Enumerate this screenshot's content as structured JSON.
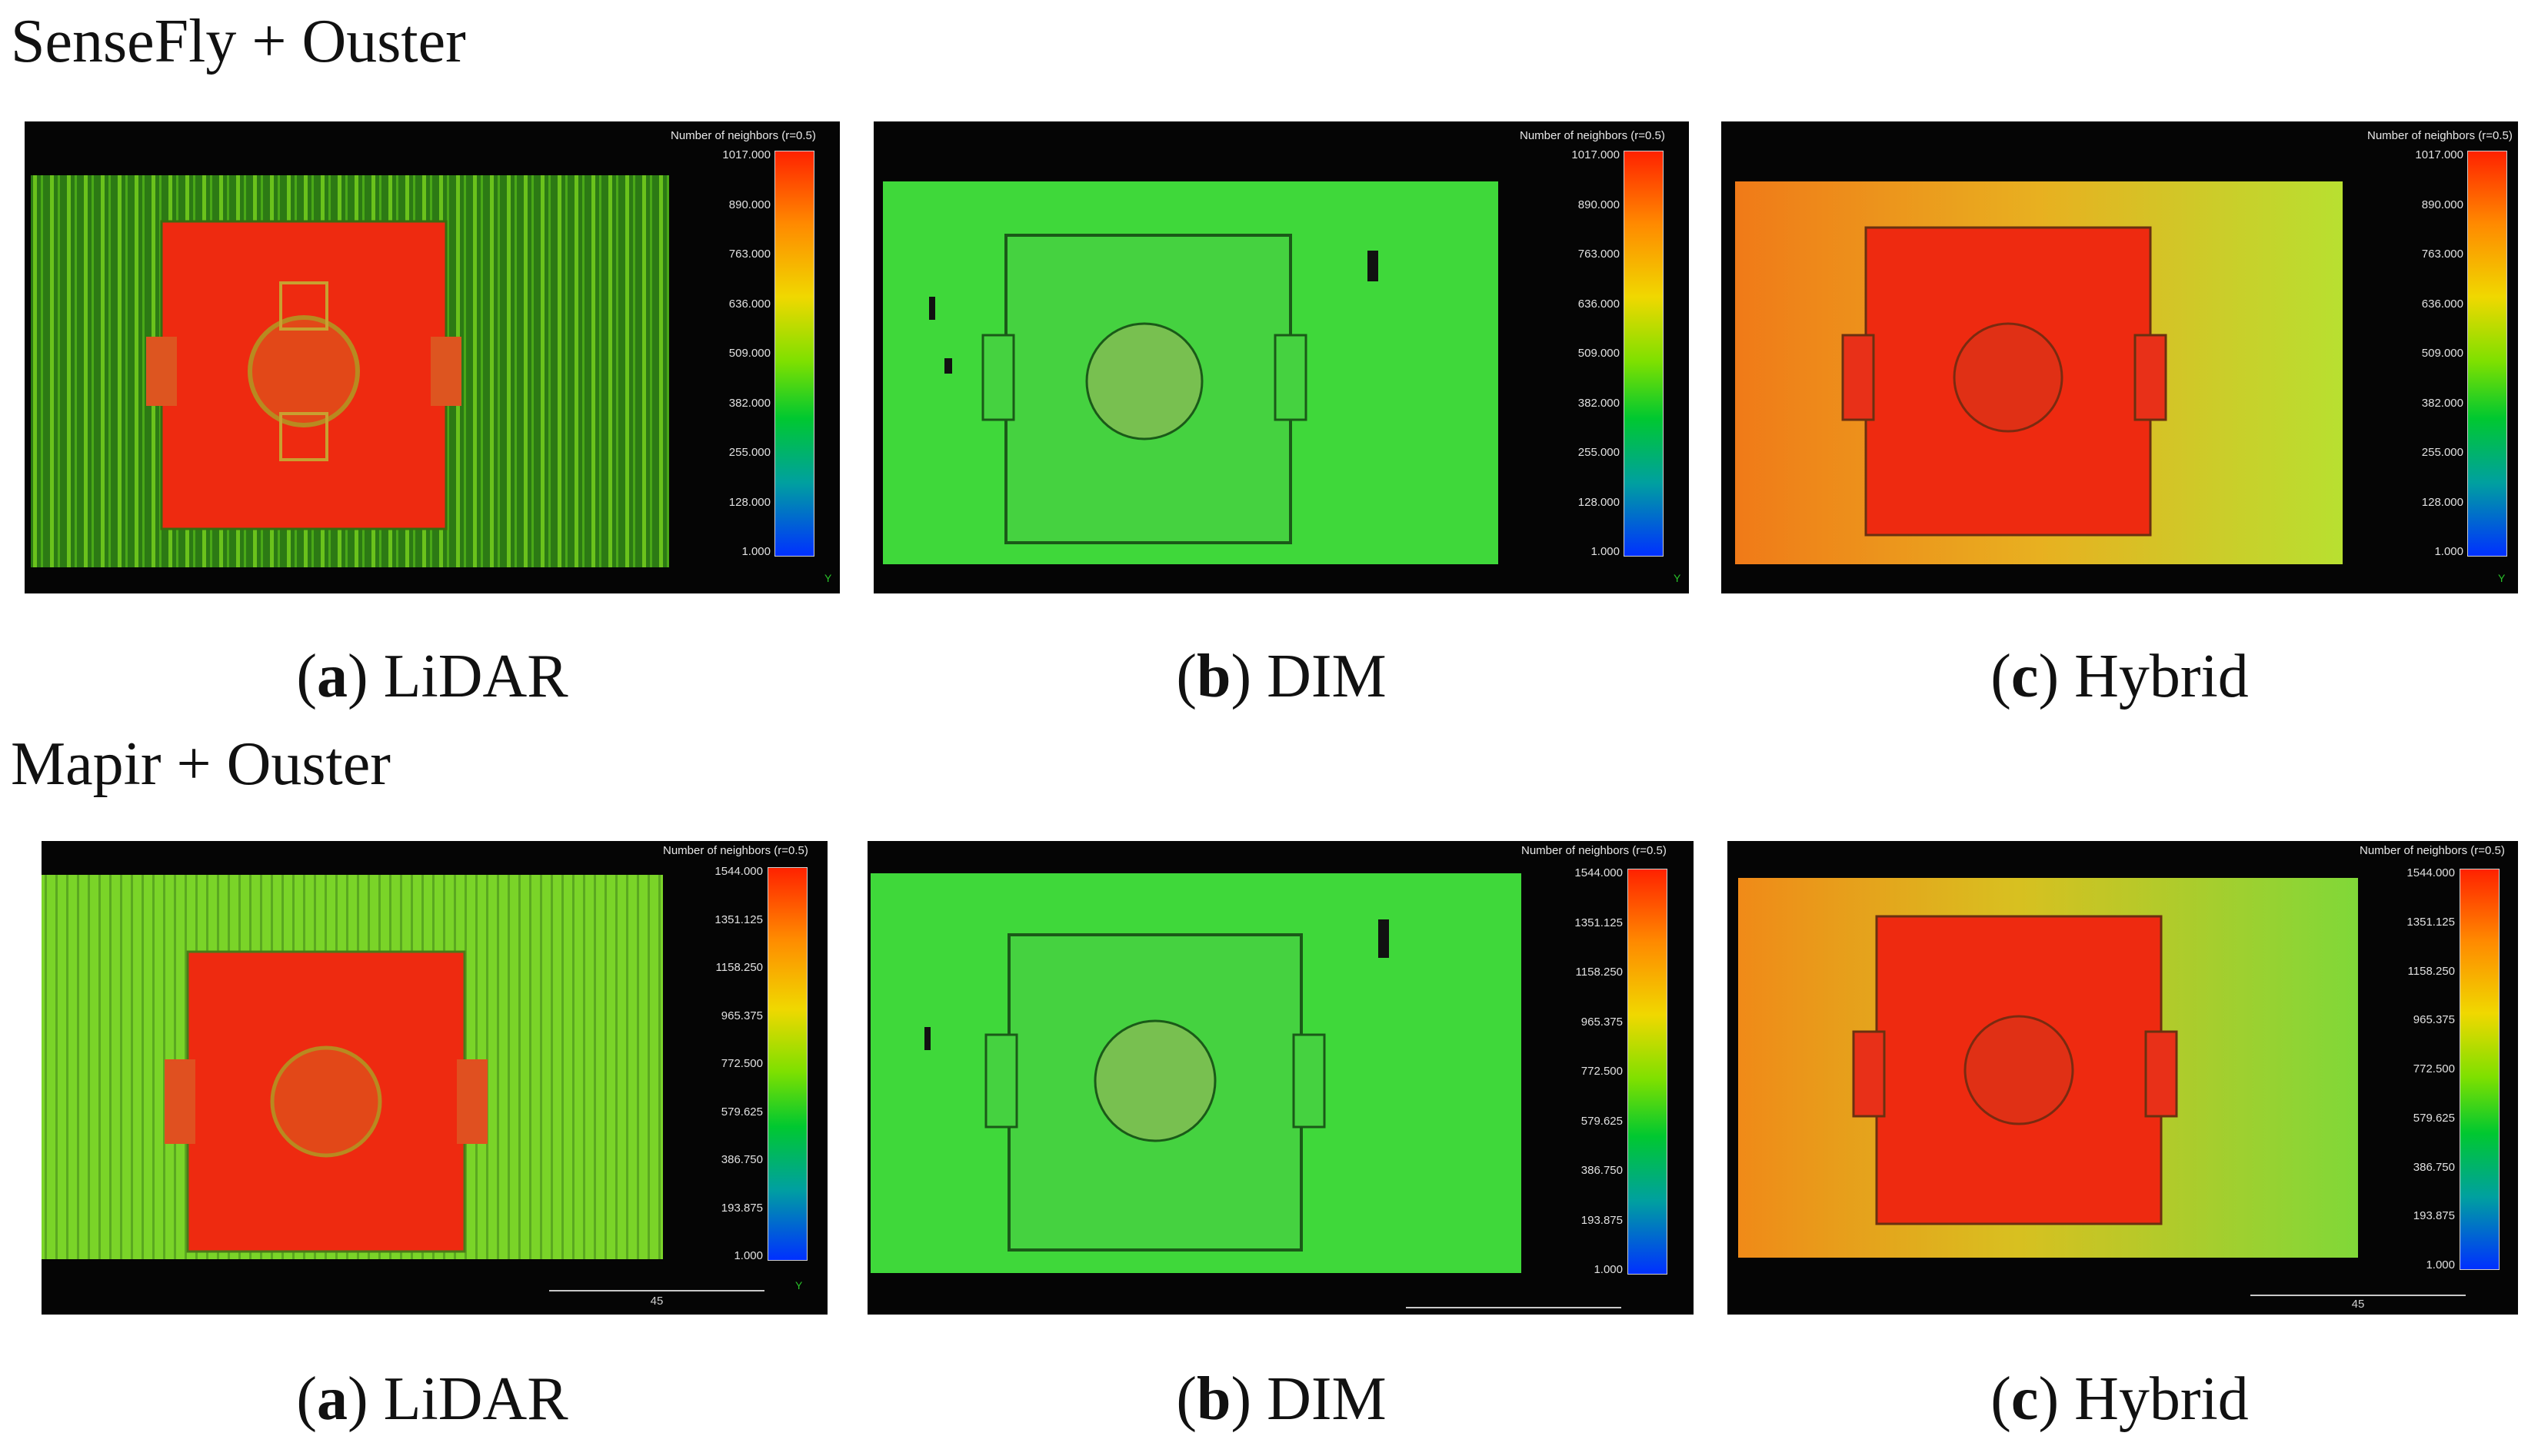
{
  "groups": [
    {
      "title": "SenseFly + Ouster",
      "colorbar_title": "Number of neighbors (r=0.5)",
      "ticks": [
        "1017.000",
        "890.000",
        "763.000",
        "636.000",
        "509.000",
        "382.000",
        "255.000",
        "128.000",
        "1.000"
      ],
      "scale_label": "",
      "panels": [
        {
          "letter": "a",
          "label": "LiDAR",
          "style": "lidar"
        },
        {
          "letter": "b",
          "label": "DIM",
          "style": "dim"
        },
        {
          "letter": "c",
          "label": "Hybrid",
          "style": "hybrid"
        }
      ]
    },
    {
      "title": "Mapir + Ouster",
      "colorbar_title": "Number of neighbors (r=0.5)",
      "ticks": [
        "1544.000",
        "1351.125",
        "1158.250",
        "965.375",
        "772.500",
        "579.625",
        "386.750",
        "193.875",
        "1.000"
      ],
      "scale_label": "45",
      "panels": [
        {
          "letter": "a",
          "label": "LiDAR",
          "style": "lidar"
        },
        {
          "letter": "b",
          "label": "DIM",
          "style": "dim"
        },
        {
          "letter": "c",
          "label": "Hybrid",
          "style": "hybrid"
        }
      ]
    }
  ],
  "colors": {
    "building": "#ee2a10",
    "lidar_ground": "#3a9a1a",
    "dim_ground": "#3fd83a",
    "hybrid_ground": "#f0a020",
    "panel_bg": "#050505"
  }
}
